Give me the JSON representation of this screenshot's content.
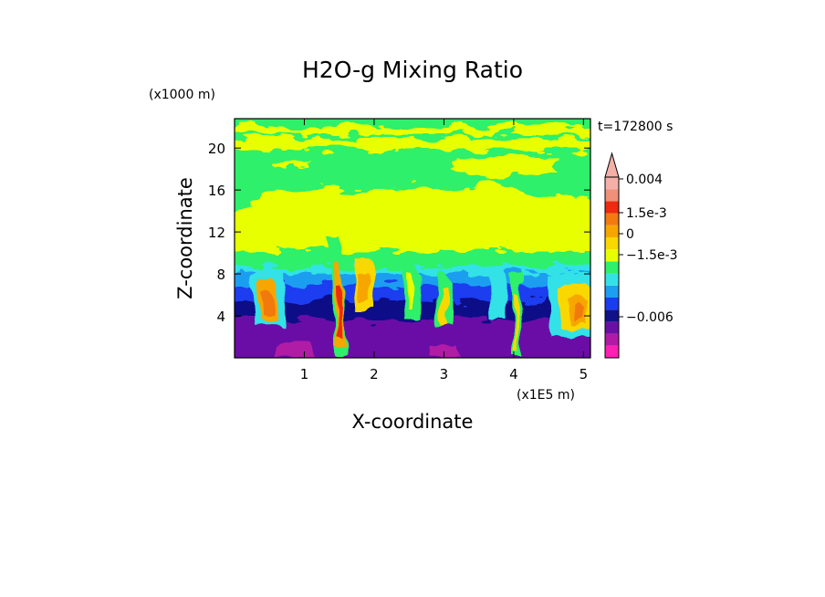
{
  "chart_data": {
    "type": "heatmap",
    "title": "H2O-g Mixing Ratio",
    "xlabel": "X-coordinate",
    "ylabel": "Z-coordinate",
    "x_scale_label": "(x1E5 m)",
    "y_scale_label": "(x1000 m)",
    "time_label": "t=172800 s",
    "xlim": [
      0,
      5.1
    ],
    "ylim": [
      0,
      22.8
    ],
    "x_ticks": [
      "1",
      "2",
      "3",
      "4",
      "5"
    ],
    "y_ticks": [
      "4",
      "8",
      "12",
      "16",
      "20"
    ],
    "x_tick_values": [
      1,
      2,
      3,
      4,
      5
    ],
    "y_tick_values": [
      4,
      8,
      12,
      16,
      20
    ],
    "colorbar": {
      "colors": [
        "#ff1fb4",
        "#b11aa6",
        "#6a0fa6",
        "#111188",
        "#1a3cf0",
        "#1e9ef0",
        "#33e2e6",
        "#2ef06a",
        "#e8ff00",
        "#f9d800",
        "#f7a600",
        "#f27a10",
        "#ee2a10",
        "#f09078",
        "#f4b0a8"
      ],
      "labels": [
        "0.004",
        "1.5e-3",
        "0",
        "−1.5e-3",
        "−0.006"
      ],
      "label_values": [
        0.004,
        0.0015,
        0,
        -0.0015,
        -0.006
      ]
    }
  }
}
